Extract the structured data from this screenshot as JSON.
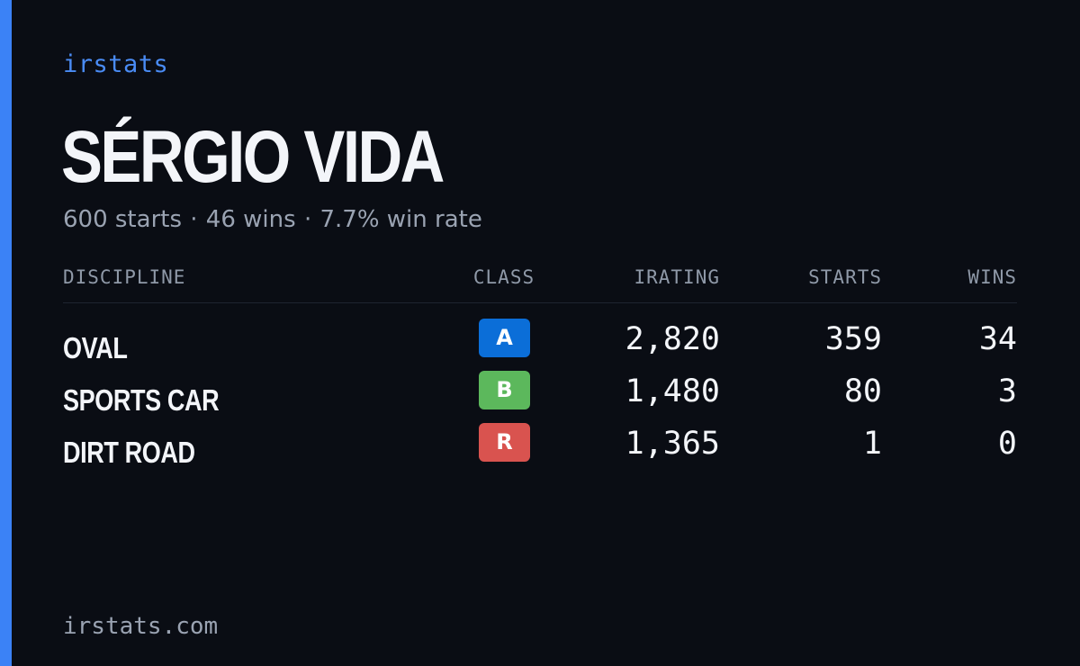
{
  "brand": "irstats",
  "player": {
    "name": "SÉRGIO VIDA",
    "summary": {
      "starts": "600 starts",
      "wins": "46 wins",
      "win_rate": "7.7% win rate",
      "separator": "·"
    }
  },
  "table": {
    "headers": {
      "discipline": "DISCIPLINE",
      "class": "CLASS",
      "irating": "IRATING",
      "starts": "STARTS",
      "wins": "WINS"
    },
    "rows": [
      {
        "discipline": "OVAL",
        "class": "A",
        "class_color": "#0b6ed8",
        "irating": "2,820",
        "starts": "359",
        "wins": "34"
      },
      {
        "discipline": "SPORTS CAR",
        "class": "B",
        "class_color": "#5cb85c",
        "irating": "1,480",
        "starts": "80",
        "wins": "3"
      },
      {
        "discipline": "DIRT ROAD",
        "class": "R",
        "class_color": "#d9534f",
        "irating": "1,365",
        "starts": "1",
        "wins": "0"
      }
    ]
  },
  "footer": "irstats.com",
  "colors": {
    "background": "#0a0d14",
    "accent": "#3b82f6",
    "brand_text": "#4a8cf5",
    "muted_text": "#9aa3b2"
  }
}
